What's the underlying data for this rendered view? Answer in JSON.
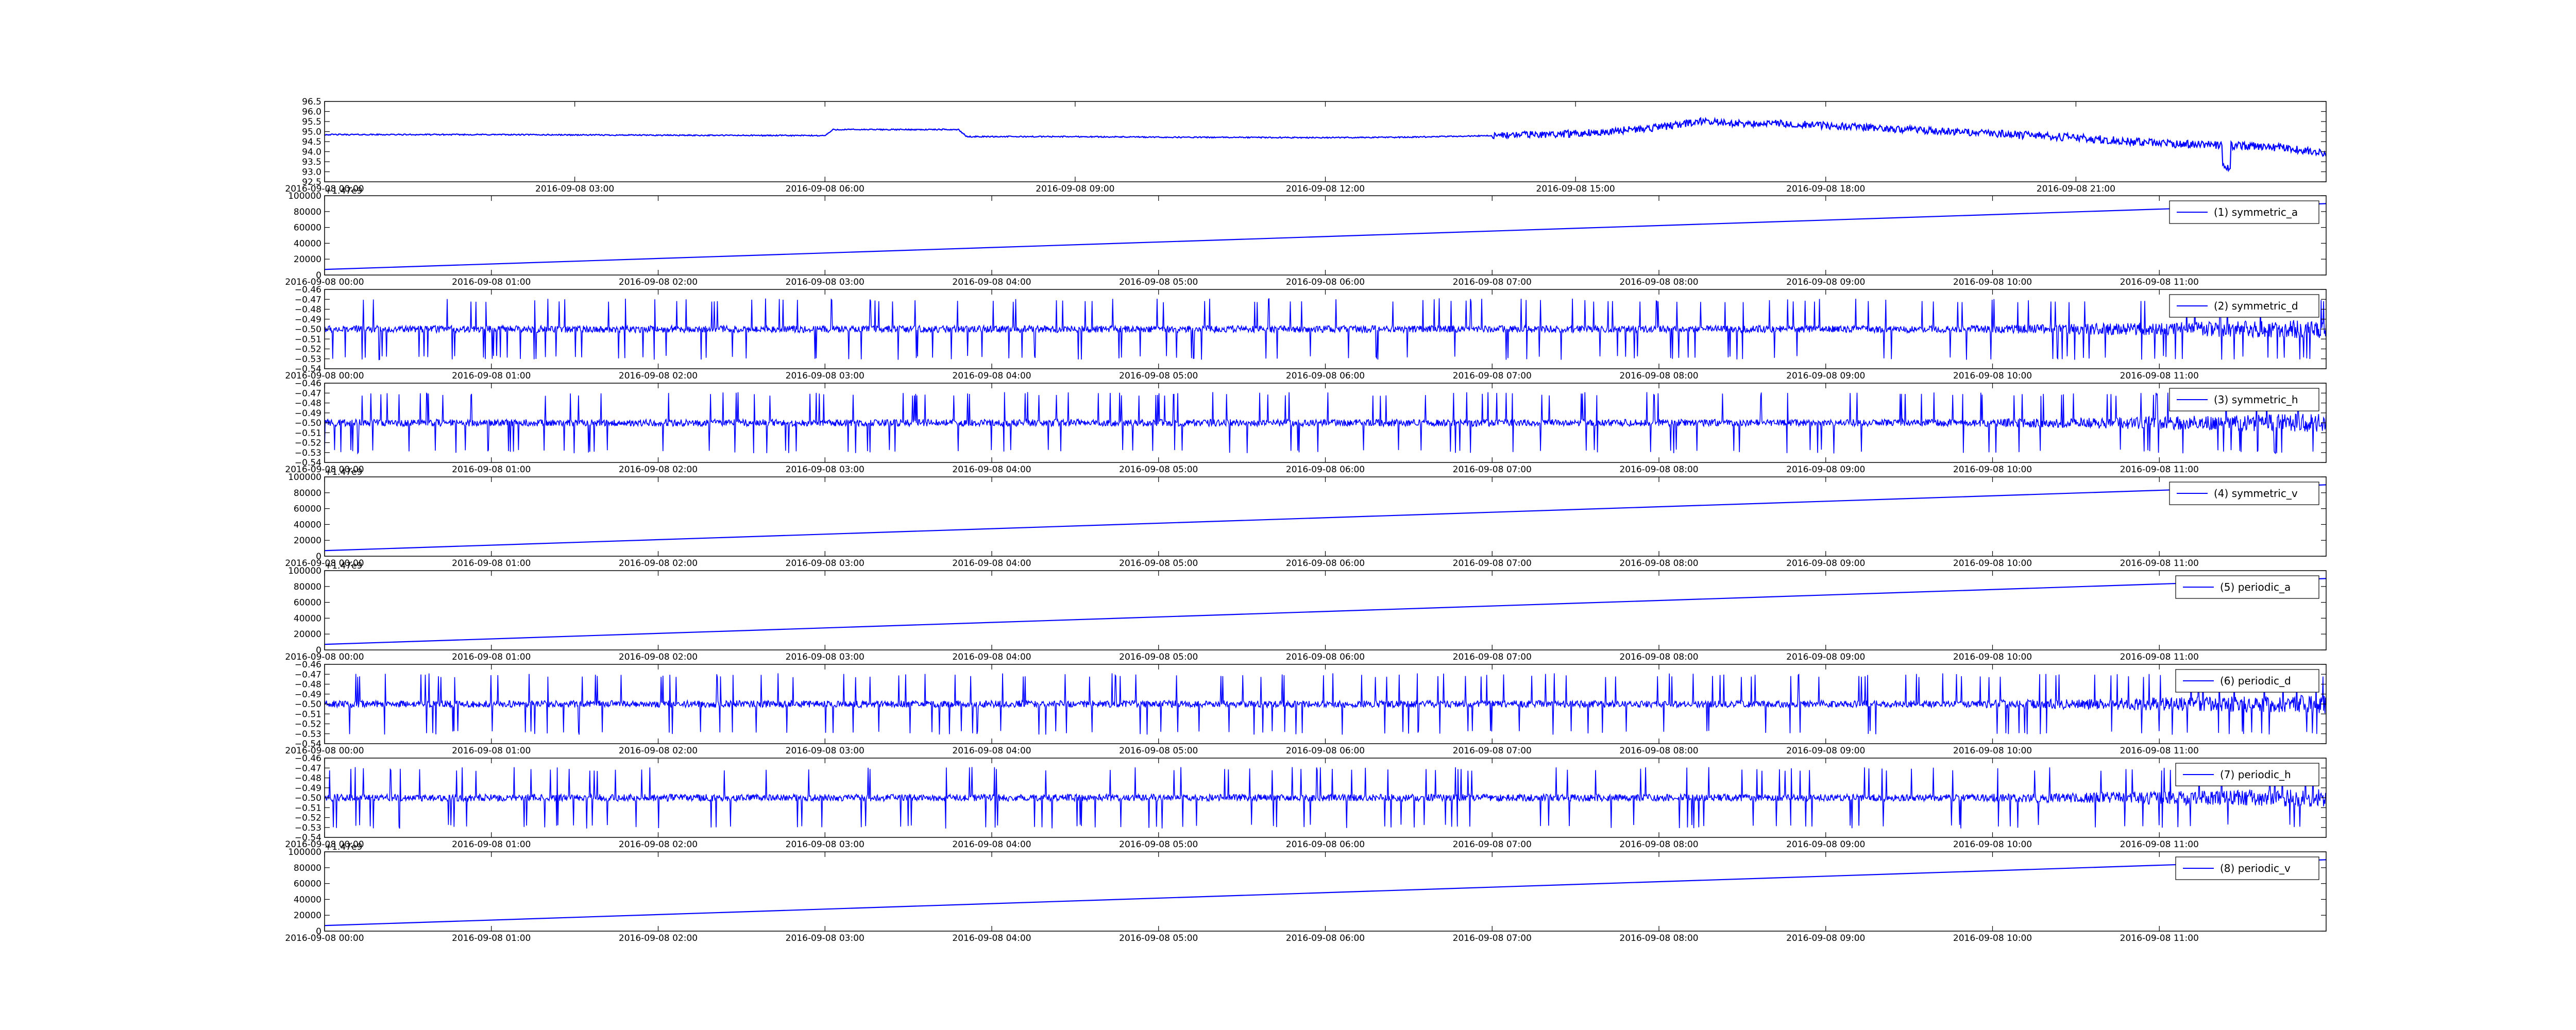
{
  "figure": {
    "background": "#ffffff",
    "line_color": "#0000ff",
    "axis_color": "#000000"
  },
  "chart_data": [
    {
      "type": "line",
      "ylim": [
        92.5,
        96.5
      ],
      "yticks": [
        "92.5",
        "93.0",
        "93.5",
        "94.0",
        "94.5",
        "95.0",
        "95.5",
        "96.0",
        "96.5"
      ],
      "xticks": [
        "2016-09-08 00:00",
        "2016-09-08 03:00",
        "2016-09-08 06:00",
        "2016-09-08 09:00",
        "2016-09-08 12:00",
        "2016-09-08 15:00",
        "2016-09-08 18:00",
        "2016-09-08 21:00"
      ],
      "xspan": 24,
      "grid": false,
      "series": [
        {
          "x": [
            0,
            2,
            4,
            6,
            6.1,
            7.6,
            7.7,
            9,
            10,
            12,
            13,
            14,
            15,
            16,
            16.5,
            17,
            17.5,
            18,
            19,
            20,
            21,
            22,
            23,
            23.5,
            24
          ],
          "values": [
            94.85,
            94.85,
            94.82,
            94.8,
            95.1,
            95.1,
            94.75,
            94.75,
            94.72,
            94.7,
            94.72,
            94.8,
            94.9,
            95.2,
            95.5,
            95.4,
            95.4,
            95.3,
            95.1,
            94.9,
            94.7,
            94.4,
            94.3,
            94.2,
            93.9
          ]
        }
      ]
    },
    {
      "type": "line",
      "ylim": [
        0,
        100000
      ],
      "yticks": [
        "0",
        "20000",
        "40000",
        "60000",
        "80000",
        "100000"
      ],
      "offset_text": "+1.47e9",
      "xticks": [
        "2016-09-08 00:00",
        "2016-09-08 01:00",
        "2016-09-08 02:00",
        "2016-09-08 03:00",
        "2016-09-08 04:00",
        "2016-09-08 05:00",
        "2016-09-08 06:00",
        "2016-09-08 07:00",
        "2016-09-08 08:00",
        "2016-09-08 09:00",
        "2016-09-08 10:00",
        "2016-09-08 11:00"
      ],
      "xspan": 12,
      "grid": false,
      "legend": "top-right",
      "series": [
        {
          "name": "(1) symmetric_a",
          "x": [
            0,
            12
          ],
          "values": [
            7000,
            90000
          ]
        }
      ]
    },
    {
      "type": "line",
      "ylim": [
        -0.54,
        -0.46
      ],
      "yticks": [
        "−0.54",
        "−0.53",
        "−0.52",
        "−0.51",
        "−0.50",
        "−0.49",
        "−0.48",
        "−0.47",
        "−0.46"
      ],
      "xticks": [
        "2016-09-08 00:00",
        "2016-09-08 01:00",
        "2016-09-08 02:00",
        "2016-09-08 03:00",
        "2016-09-08 04:00",
        "2016-09-08 05:00",
        "2016-09-08 06:00",
        "2016-09-08 07:00",
        "2016-09-08 08:00",
        "2016-09-08 09:00",
        "2016-09-08 10:00",
        "2016-09-08 11:00"
      ],
      "xspan": 12,
      "grid": false,
      "legend": "top-right",
      "series": [
        {
          "name": "(2) symmetric_d",
          "baseline": -0.5,
          "spike_low": -0.531,
          "spike_high": -0.469
        }
      ]
    },
    {
      "type": "line",
      "ylim": [
        -0.54,
        -0.46
      ],
      "yticks": [
        "−0.54",
        "−0.53",
        "−0.52",
        "−0.51",
        "−0.50",
        "−0.49",
        "−0.48",
        "−0.47",
        "−0.46"
      ],
      "xticks": [
        "2016-09-08 00:00",
        "2016-09-08 01:00",
        "2016-09-08 02:00",
        "2016-09-08 03:00",
        "2016-09-08 04:00",
        "2016-09-08 05:00",
        "2016-09-08 06:00",
        "2016-09-08 07:00",
        "2016-09-08 08:00",
        "2016-09-08 09:00",
        "2016-09-08 10:00",
        "2016-09-08 11:00"
      ],
      "xspan": 12,
      "grid": false,
      "legend": "top-right",
      "series": [
        {
          "name": "(3) symmetric_h",
          "baseline": -0.5,
          "spike_low": -0.531,
          "spike_high": -0.469
        }
      ]
    },
    {
      "type": "line",
      "ylim": [
        0,
        100000
      ],
      "yticks": [
        "0",
        "20000",
        "40000",
        "60000",
        "80000",
        "100000"
      ],
      "offset_text": "+1.47e9",
      "xticks": [
        "2016-09-08 00:00",
        "2016-09-08 01:00",
        "2016-09-08 02:00",
        "2016-09-08 03:00",
        "2016-09-08 04:00",
        "2016-09-08 05:00",
        "2016-09-08 06:00",
        "2016-09-08 07:00",
        "2016-09-08 08:00",
        "2016-09-08 09:00",
        "2016-09-08 10:00",
        "2016-09-08 11:00"
      ],
      "xspan": 12,
      "grid": false,
      "legend": "top-right",
      "series": [
        {
          "name": "(4) symmetric_v",
          "x": [
            0,
            12
          ],
          "values": [
            7000,
            90000
          ]
        }
      ]
    },
    {
      "type": "line",
      "ylim": [
        0,
        100000
      ],
      "yticks": [
        "0",
        "20000",
        "40000",
        "60000",
        "80000",
        "100000"
      ],
      "offset_text": "+1.47e9",
      "xticks": [
        "2016-09-08 00:00",
        "2016-09-08 01:00",
        "2016-09-08 02:00",
        "2016-09-08 03:00",
        "2016-09-08 04:00",
        "2016-09-08 05:00",
        "2016-09-08 06:00",
        "2016-09-08 07:00",
        "2016-09-08 08:00",
        "2016-09-08 09:00",
        "2016-09-08 10:00",
        "2016-09-08 11:00"
      ],
      "xspan": 12,
      "grid": false,
      "legend": "top-right",
      "series": [
        {
          "name": "(5) periodic_a",
          "x": [
            0,
            12
          ],
          "values": [
            7000,
            90000
          ]
        }
      ]
    },
    {
      "type": "line",
      "ylim": [
        -0.54,
        -0.46
      ],
      "yticks": [
        "−0.54",
        "−0.53",
        "−0.52",
        "−0.51",
        "−0.50",
        "−0.49",
        "−0.48",
        "−0.47",
        "−0.46"
      ],
      "xticks": [
        "2016-09-08 00:00",
        "2016-09-08 01:00",
        "2016-09-08 02:00",
        "2016-09-08 03:00",
        "2016-09-08 04:00",
        "2016-09-08 05:00",
        "2016-09-08 06:00",
        "2016-09-08 07:00",
        "2016-09-08 08:00",
        "2016-09-08 09:00",
        "2016-09-08 10:00",
        "2016-09-08 11:00"
      ],
      "xspan": 12,
      "grid": false,
      "legend": "top-right",
      "series": [
        {
          "name": "(6) periodic_d",
          "baseline": -0.5,
          "spike_low": -0.531,
          "spike_high": -0.469
        }
      ]
    },
    {
      "type": "line",
      "ylim": [
        -0.54,
        -0.46
      ],
      "yticks": [
        "−0.54",
        "−0.53",
        "−0.52",
        "−0.51",
        "−0.50",
        "−0.49",
        "−0.48",
        "−0.47",
        "−0.46"
      ],
      "xticks": [
        "2016-09-08 00:00",
        "2016-09-08 01:00",
        "2016-09-08 02:00",
        "2016-09-08 03:00",
        "2016-09-08 04:00",
        "2016-09-08 05:00",
        "2016-09-08 06:00",
        "2016-09-08 07:00",
        "2016-09-08 08:00",
        "2016-09-08 09:00",
        "2016-09-08 10:00",
        "2016-09-08 11:00"
      ],
      "xspan": 12,
      "grid": false,
      "legend": "top-right",
      "series": [
        {
          "name": "(7) periodic_h",
          "baseline": -0.5,
          "spike_low": -0.531,
          "spike_high": -0.469
        }
      ]
    },
    {
      "type": "line",
      "ylim": [
        0,
        100000
      ],
      "yticks": [
        "0",
        "20000",
        "40000",
        "60000",
        "80000",
        "100000"
      ],
      "offset_text": "+1.47e9",
      "xticks": [
        "2016-09-08 00:00",
        "2016-09-08 01:00",
        "2016-09-08 02:00",
        "2016-09-08 03:00",
        "2016-09-08 04:00",
        "2016-09-08 05:00",
        "2016-09-08 06:00",
        "2016-09-08 07:00",
        "2016-09-08 08:00",
        "2016-09-08 09:00",
        "2016-09-08 10:00",
        "2016-09-08 11:00"
      ],
      "xspan": 12,
      "grid": false,
      "legend": "top-right",
      "series": [
        {
          "name": "(8) periodic_v",
          "x": [
            0,
            12
          ],
          "values": [
            7000,
            90000
          ]
        }
      ]
    }
  ]
}
